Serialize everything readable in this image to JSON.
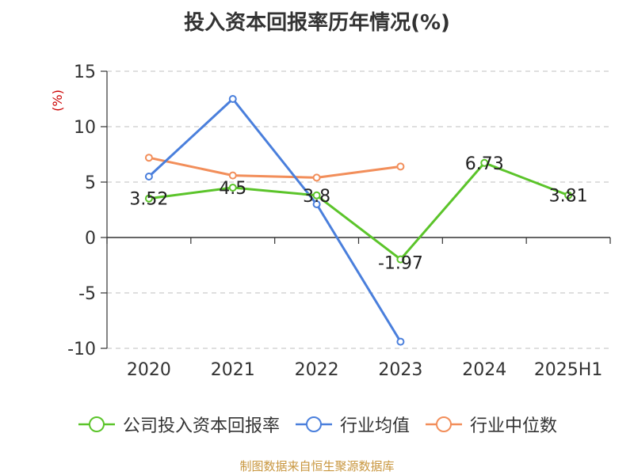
{
  "chart_data": {
    "type": "line",
    "title": "投入资本回报率历年情况(%)",
    "ylabel": "(%)",
    "ylim": [
      -10,
      15
    ],
    "yticks": [
      15,
      10,
      5,
      0,
      -5,
      -10
    ],
    "categories": [
      "2020",
      "2021",
      "2022",
      "2023",
      "2024",
      "2025H1"
    ],
    "grid": true,
    "legend_position": "bottom",
    "series": [
      {
        "name": "公司投入资本回报率",
        "color": "#5bc42a",
        "values": [
          3.52,
          4.5,
          3.8,
          -1.97,
          6.73,
          3.81
        ],
        "data_labels": [
          "3.52",
          "4.5",
          "3.8",
          "-1.97",
          "6.73",
          "3.81"
        ]
      },
      {
        "name": "行业均值",
        "color": "#4a7fdc",
        "values": [
          5.5,
          12.5,
          3.0,
          -9.4,
          null,
          null
        ]
      },
      {
        "name": "行业中位数",
        "color": "#f28e5a",
        "values": [
          7.2,
          5.6,
          5.4,
          6.4,
          null,
          null
        ]
      }
    ]
  },
  "source_text": "制图数据来自恒生聚源数据库"
}
